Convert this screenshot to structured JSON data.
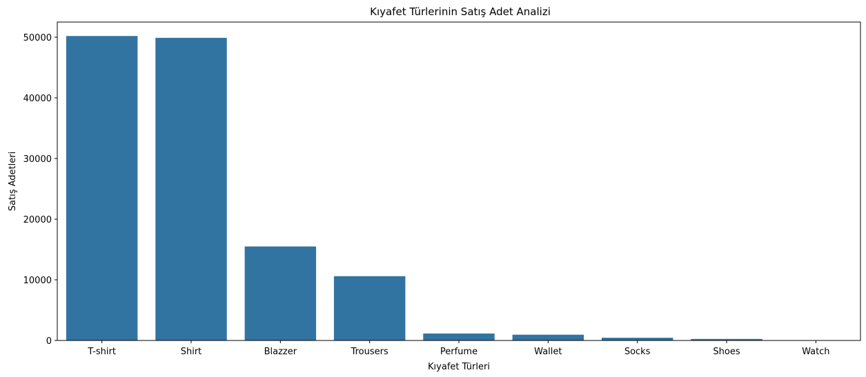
{
  "chart_data": {
    "type": "bar",
    "title": "Kıyafet Türlerinin Satış Adet Analizi",
    "xlabel": "Kıyafet Türleri",
    "ylabel": "Satış Adetleri",
    "categories": [
      "T-shirt",
      "Shirt",
      "Blazzer",
      "Trousers",
      "Perfume",
      "Wallet",
      "Socks",
      "Shoes",
      "Watch"
    ],
    "values": [
      50200,
      49900,
      15500,
      10600,
      1150,
      950,
      450,
      250,
      20
    ],
    "ylim": [
      0,
      52500
    ],
    "yticks": [
      0,
      10000,
      20000,
      30000,
      40000,
      50000
    ],
    "bar_color": "#3274a1",
    "grid": false,
    "legend": "none"
  }
}
